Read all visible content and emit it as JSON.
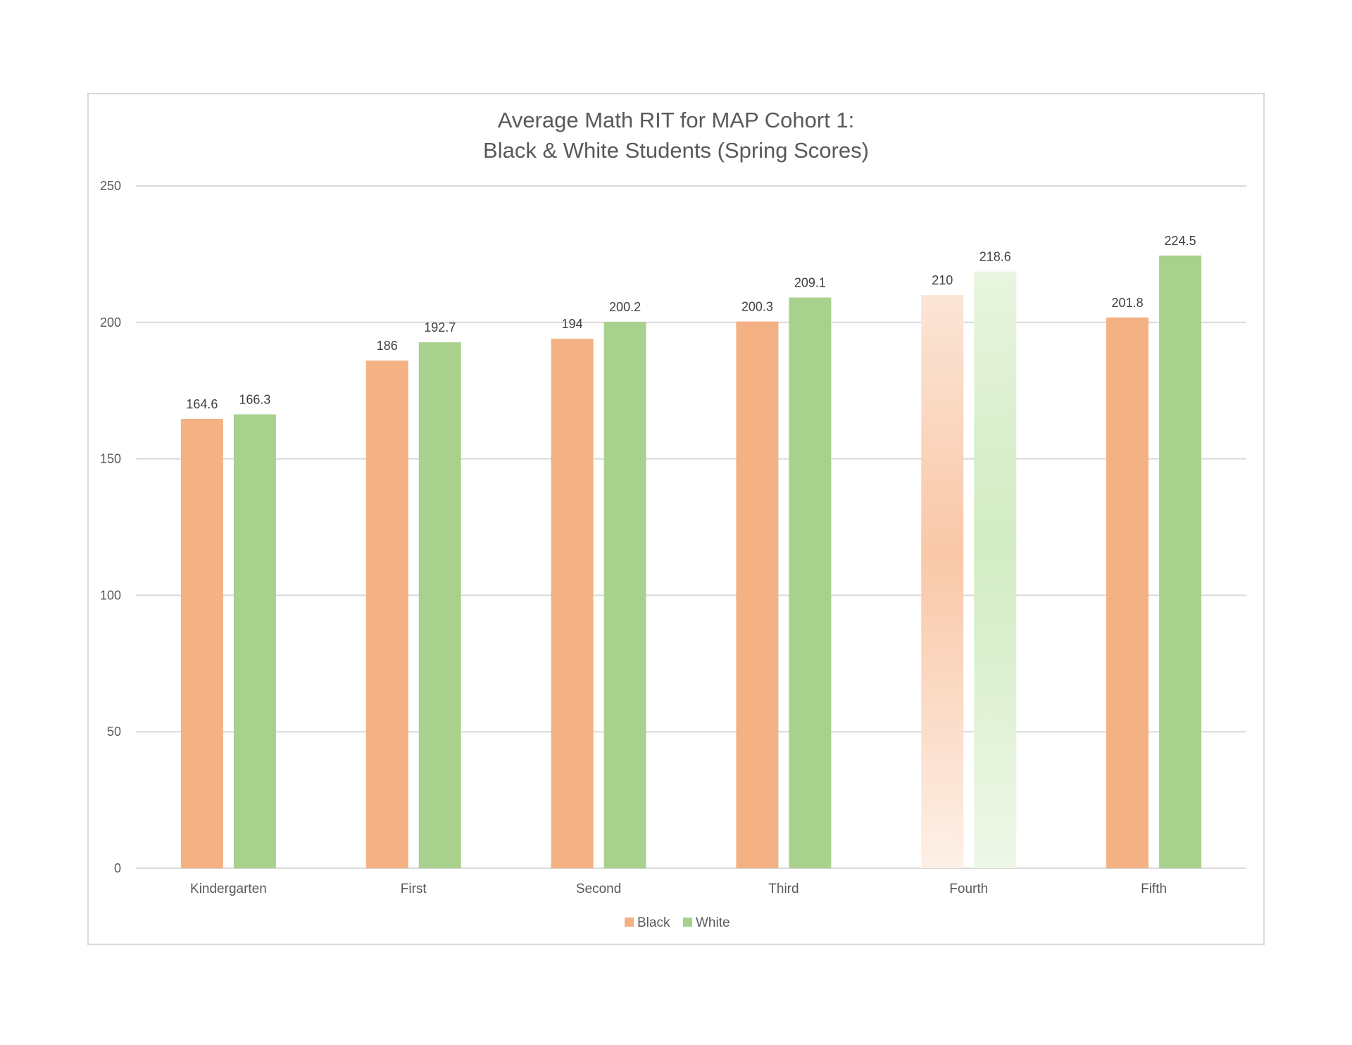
{
  "chart_data": {
    "type": "bar",
    "title": [
      "Average Math RIT for MAP Cohort 1:",
      "Black & White Students (Spring Scores)"
    ],
    "categories": [
      "Kindergarten",
      "First",
      "Second",
      "Third",
      "Fourth",
      "Fifth"
    ],
    "series": [
      {
        "name": "Black",
        "color": "#f4b183",
        "values": [
          164.6,
          186,
          194,
          200.3,
          210,
          201.8
        ]
      },
      {
        "name": "White",
        "color": "#a9d18e",
        "values": [
          166.3,
          192.7,
          200.2,
          209.1,
          218.6,
          224.5
        ]
      }
    ],
    "data_labels": [
      [
        "164.6",
        "186",
        "194",
        "200.3",
        "210",
        "201.8"
      ],
      [
        "166.3",
        "192.7",
        "200.2",
        "209.1",
        "218.6",
        "224.5"
      ]
    ],
    "faded_category": "Fourth",
    "ylim": [
      0,
      250
    ],
    "yticks": [
      "0",
      "50",
      "100",
      "150",
      "200",
      "250"
    ],
    "grid": true,
    "legend_position": "bottom"
  }
}
